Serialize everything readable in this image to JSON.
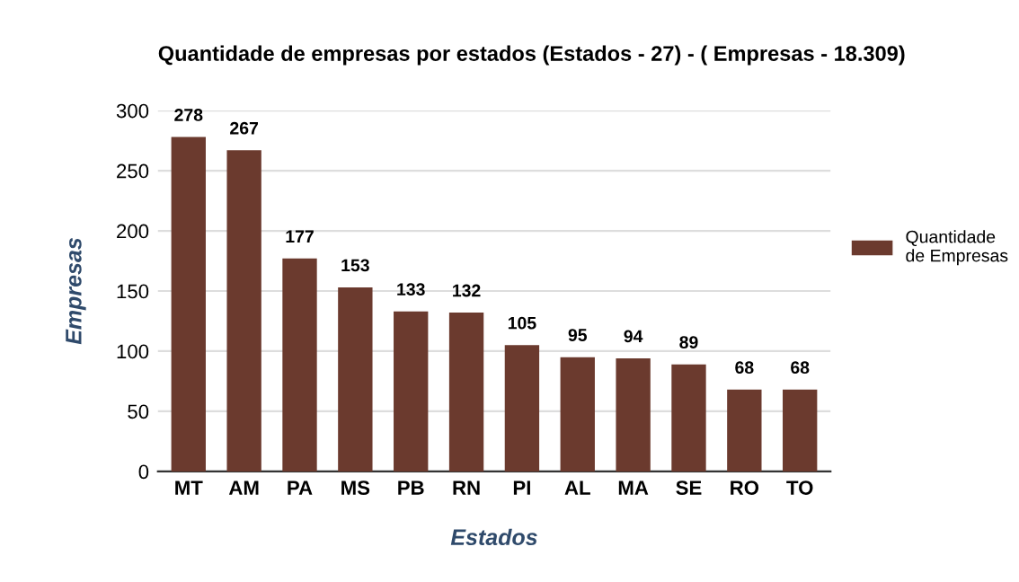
{
  "chart_data": {
    "type": "bar",
    "title": "Quantidade de empresas por estados (Estados - 27) - ( Empresas - 18.309)",
    "xlabel": "Estados",
    "ylabel": "Empresas",
    "categories": [
      "MT",
      "AM",
      "PA",
      "MS",
      "PB",
      "RN",
      "PI",
      "AL",
      "MA",
      "SE",
      "RO",
      "TO"
    ],
    "series": [
      {
        "name": "Quantidade de Empresas",
        "color": "#6b3a2e",
        "values": [
          278,
          267,
          177,
          153,
          133,
          132,
          105,
          95,
          94,
          89,
          68,
          68
        ]
      }
    ],
    "ylim": [
      0,
      300
    ],
    "yticks": [
      0,
      50,
      100,
      150,
      200,
      250,
      300
    ],
    "grid": "y",
    "legend": "right",
    "data_labels": true
  }
}
